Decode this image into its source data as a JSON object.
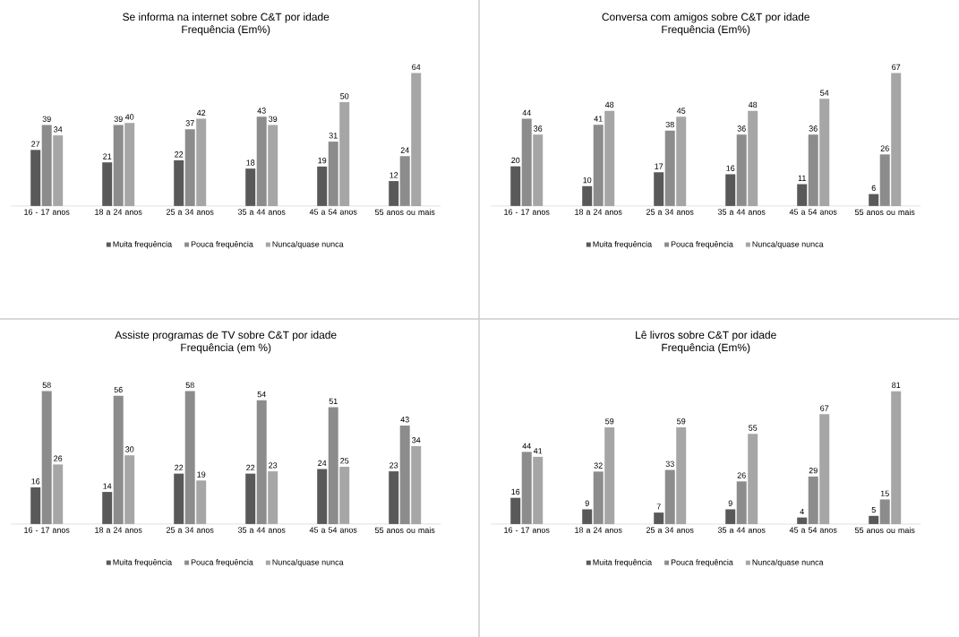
{
  "chart_data": [
    {
      "type": "bar",
      "title": "Se informa na internet sobre C&T por idade",
      "subtitle": "Frequência (Em%)",
      "categories": [
        "16 - 17 anos",
        "18 a 24 anos",
        "25 a 34 anos",
        "35 a 44 anos",
        "45 a 54 anos",
        "55 anos ou mais"
      ],
      "series": [
        {
          "name": "Muita frequência",
          "color": "#595959",
          "values": [
            27,
            21,
            22,
            18,
            19,
            12
          ]
        },
        {
          "name": "Pouca frequência",
          "color": "#8c8c8c",
          "values": [
            39,
            39,
            37,
            43,
            31,
            24
          ]
        },
        {
          "name": "Nunca/quase nunca",
          "color": "#a6a6a6",
          "values": [
            34,
            40,
            42,
            39,
            50,
            64
          ]
        }
      ],
      "data_labels": true,
      "legend": "bottom"
    },
    {
      "type": "bar",
      "title": "Conversa com amigos sobre C&T por idade",
      "subtitle": "Frequência (Em%)",
      "categories": [
        "16 - 17 anos",
        "18 a 24 anos",
        "25 a 34 anos",
        "35 a 44 anos",
        "45 a 54 anos",
        "55 anos ou mais"
      ],
      "series": [
        {
          "name": "Muita frequência",
          "color": "#595959",
          "values": [
            20,
            10,
            17,
            16,
            11,
            6
          ]
        },
        {
          "name": "Pouca frequência",
          "color": "#8c8c8c",
          "values": [
            44,
            41,
            38,
            36,
            36,
            26
          ]
        },
        {
          "name": "Nunca/quase nunca",
          "color": "#a6a6a6",
          "values": [
            36,
            48,
            45,
            48,
            54,
            67
          ]
        }
      ],
      "data_labels": true,
      "legend": "bottom"
    },
    {
      "type": "bar",
      "title": "Assiste programas de TV sobre C&T por idade",
      "subtitle": "Frequência (em %)",
      "categories": [
        "16 - 17 anos",
        "18 a 24 anos",
        "25 a 34 anos",
        "35 a 44 anos",
        "45 a 54 anos",
        "55 anos ou mais"
      ],
      "series": [
        {
          "name": "Muita frequência",
          "color": "#595959",
          "values": [
            16,
            14,
            22,
            22,
            24,
            23
          ]
        },
        {
          "name": "Pouca frequência",
          "color": "#8c8c8c",
          "values": [
            58,
            56,
            58,
            54,
            51,
            43
          ]
        },
        {
          "name": "Nunca/quase nunca",
          "color": "#a6a6a6",
          "values": [
            26,
            30,
            19,
            23,
            25,
            34
          ]
        }
      ],
      "data_labels": true,
      "legend": "bottom"
    },
    {
      "type": "bar",
      "title": "Lê livros sobre C&T por idade",
      "subtitle": "Frequência (Em%)",
      "categories": [
        "16 - 17 anos",
        "18 a 24 anos",
        "25 a 34 anos",
        "35 a 44 anos",
        "45 a 54 anos",
        "55 anos ou mais"
      ],
      "series": [
        {
          "name": "Muita frequência",
          "color": "#595959",
          "values": [
            16,
            9,
            7,
            9,
            4,
            5
          ]
        },
        {
          "name": "Pouca frequência",
          "color": "#8c8c8c",
          "values": [
            44,
            32,
            33,
            26,
            29,
            15
          ]
        },
        {
          "name": "Nunca/quase nunca",
          "color": "#a6a6a6",
          "values": [
            41,
            59,
            59,
            55,
            67,
            81
          ]
        }
      ],
      "data_labels": true,
      "legend": "bottom"
    }
  ]
}
